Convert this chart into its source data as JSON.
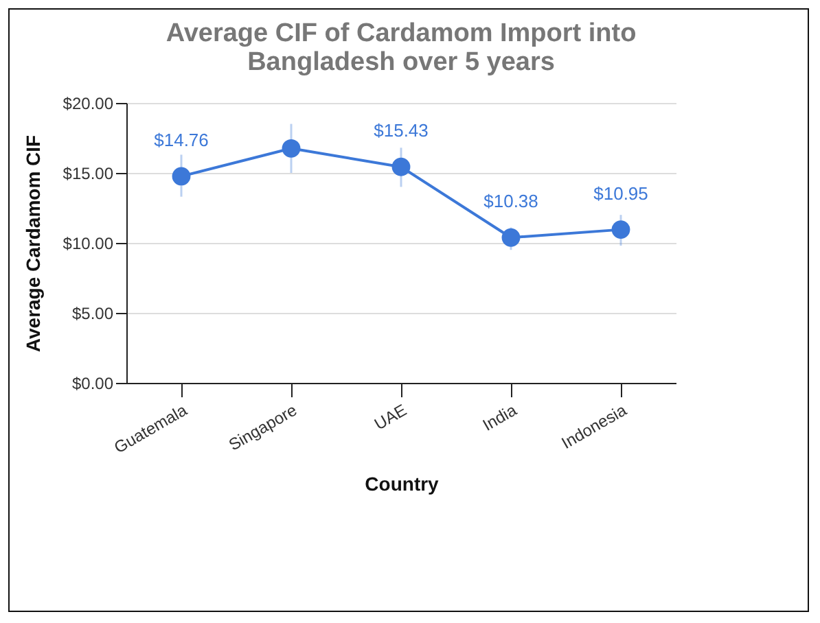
{
  "chart_data": {
    "type": "line",
    "title": "Average CIF of Cardamom Import into Bangladesh over 5 years",
    "xlabel": "Country",
    "ylabel": "Average Cardamom CIF",
    "categories": [
      "Guatemala",
      "Singapore",
      "UAE",
      "India",
      "Indonesia"
    ],
    "series": [
      {
        "color": "#3c78d8",
        "values": [
          14.76,
          16.75,
          15.43,
          10.38,
          10.95
        ],
        "errors": [
          [
            13.3,
            16.3
          ],
          [
            15.0,
            18.5
          ],
          [
            14.0,
            16.8
          ],
          [
            9.5,
            11.1
          ],
          [
            9.8,
            12.0
          ]
        ],
        "value_labels": [
          "$14.76",
          null,
          "$15.43",
          "$10.38",
          "$10.95"
        ]
      }
    ],
    "ylim": [
      0,
      20
    ],
    "yticks": [
      {
        "value": 0,
        "label": "$0.00"
      },
      {
        "value": 5,
        "label": "$5.00"
      },
      {
        "value": 10,
        "label": "$10.00"
      },
      {
        "value": 15,
        "label": "$15.00"
      },
      {
        "value": 20,
        "label": "$20.00"
      }
    ],
    "grid": "y",
    "marker": "circle",
    "line_style": "solid"
  }
}
